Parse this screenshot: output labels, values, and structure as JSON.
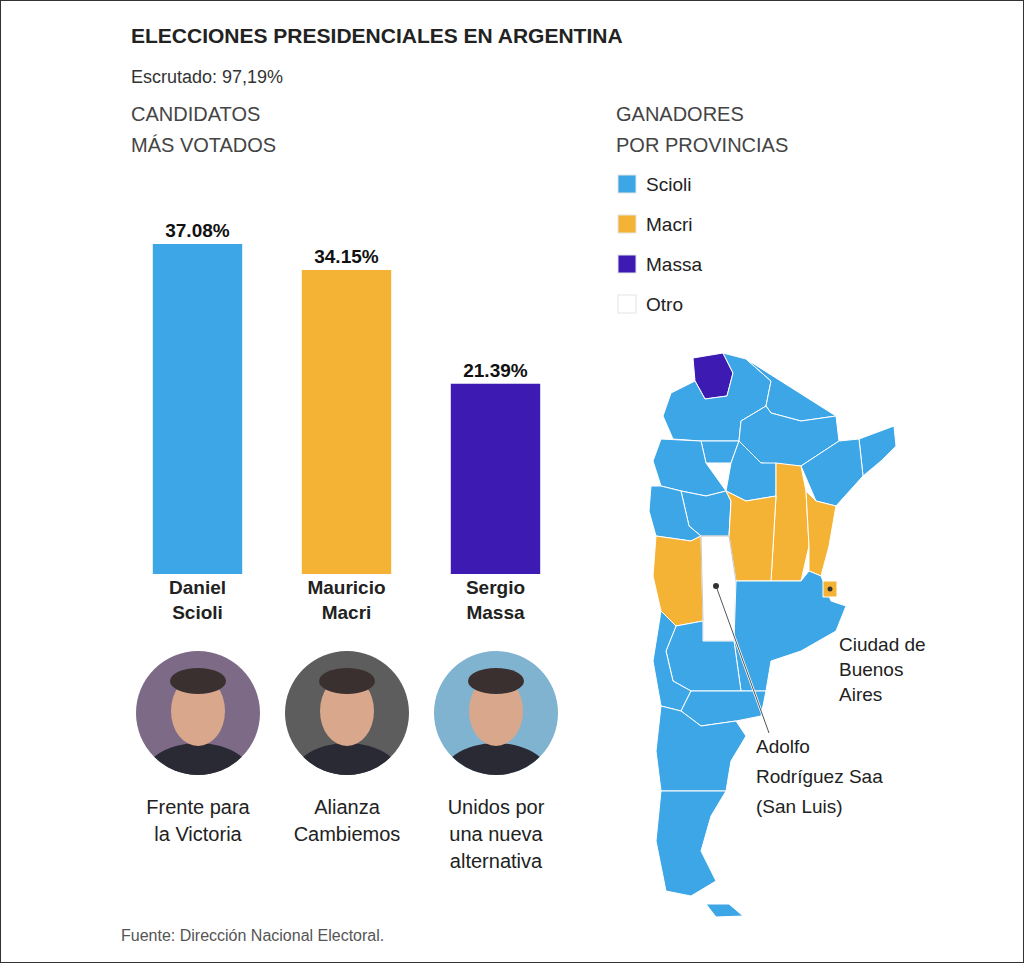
{
  "title": "ELECCIONES PRESIDENCIALES EN ARGENTINA",
  "subtitle": "Escrutado: 97,19%",
  "chart_data": {
    "type": "bar",
    "title": "CANDIDATOS MÁS VOTADOS",
    "categories": [
      "Daniel Scioli",
      "Mauricio Macri",
      "Sergio Massa"
    ],
    "values": [
      37.08,
      34.15,
      21.39
    ],
    "value_labels": [
      "37.08%",
      "34.15%",
      "21.39%"
    ],
    "colors": [
      "#3da6e6",
      "#f5b335",
      "#3d1bb3"
    ],
    "parties": [
      "Frente para la Victoria",
      "Alianza Cambiemos",
      "Unidos por una nueva alternativa"
    ],
    "ylim": [
      0,
      40
    ],
    "yticks": [],
    "grid": false,
    "data_labels": true,
    "tick_labels": "x"
  },
  "map": {
    "title": "GANADORES POR PROVINCIAS",
    "legend": [
      {
        "name": "Scioli",
        "color": "#3da6e6"
      },
      {
        "name": "Macri",
        "color": "#f5b335"
      },
      {
        "name": "Massa",
        "color": "#3d1bb3"
      },
      {
        "name": "Otro",
        "color": "#ffffff"
      }
    ],
    "regions": [
      "Massa",
      "Scioli",
      "Scioli",
      "Scioli",
      "Scioli",
      "Scioli",
      "Scioli",
      "Scioli",
      "Macri",
      "Macri",
      "Scioli",
      "Scioli",
      "Macri",
      "Scioli",
      "Macri",
      "Otro",
      "Scioli",
      "Scioli",
      "Scioli",
      "Scioli",
      "Scioli",
      "Scioli",
      "Scioli",
      "Macri"
    ],
    "labels": [
      "Ciudad de Buenos Aires",
      "Adolfo Rodríguez Saa (San Luis)"
    ]
  },
  "source": "Fuente: Dirección Nacional Electoral."
}
